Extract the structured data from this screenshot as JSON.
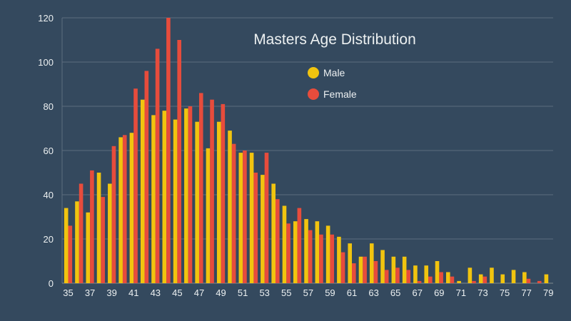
{
  "chart_data": {
    "type": "bar",
    "title": "Masters Age Distribution",
    "xlabel": "",
    "ylabel": "",
    "ylim": [
      0,
      120
    ],
    "y_ticks": [
      0,
      20,
      40,
      60,
      80,
      100,
      120
    ],
    "grid": true,
    "legend_position": "top-center",
    "categories": [
      35,
      36,
      37,
      38,
      39,
      40,
      41,
      42,
      43,
      44,
      45,
      46,
      47,
      48,
      49,
      50,
      51,
      52,
      53,
      54,
      55,
      56,
      57,
      58,
      59,
      60,
      61,
      62,
      63,
      64,
      65,
      66,
      67,
      68,
      69,
      70,
      71,
      72,
      73,
      74,
      75,
      76,
      77,
      78,
      79
    ],
    "x_tick_labels": [
      "35",
      "37",
      "39",
      "41",
      "43",
      "45",
      "47",
      "49",
      "51",
      "53",
      "55",
      "57",
      "59",
      "61",
      "63",
      "65",
      "67",
      "69",
      "71",
      "73",
      "75",
      "77",
      "79"
    ],
    "series": [
      {
        "name": "Male",
        "color": "#f1c40f",
        "values": [
          34,
          37,
          32,
          50,
          45,
          66,
          68,
          83,
          76,
          78,
          74,
          79,
          73,
          61,
          73,
          69,
          59,
          59,
          49,
          45,
          35,
          28,
          29,
          28,
          26,
          21,
          18,
          12,
          18,
          15,
          12,
          12,
          8,
          8,
          10,
          5,
          1,
          7,
          4,
          7,
          4,
          6,
          5,
          0,
          4
        ]
      },
      {
        "name": "Female",
        "color": "#e74c3c",
        "values": [
          26,
          45,
          51,
          39,
          62,
          67,
          88,
          96,
          106,
          120,
          110,
          80,
          86,
          83,
          81,
          63,
          60,
          50,
          59,
          38,
          27,
          34,
          24,
          22,
          22,
          14,
          9,
          12,
          10,
          6,
          7,
          6,
          1,
          3,
          5,
          3,
          0,
          1,
          3,
          0,
          0,
          0,
          2,
          1,
          0
        ]
      }
    ]
  },
  "colors": {
    "background": "#34495e",
    "text": "#ecf0f1",
    "grid": "#5d6d7e"
  }
}
